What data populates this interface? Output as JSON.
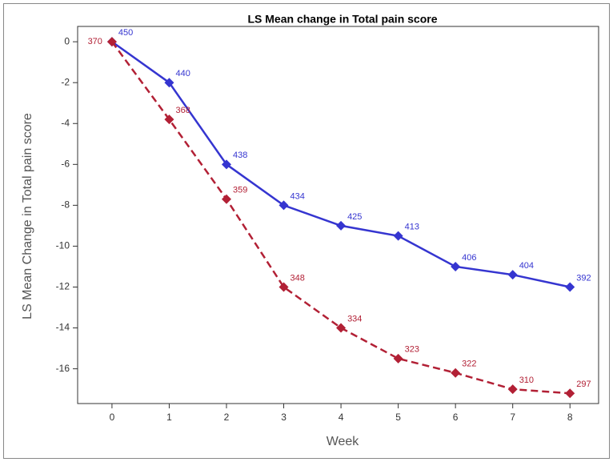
{
  "chart_data": {
    "type": "line",
    "title": "LS Mean change in Total pain score",
    "x_label": "Week",
    "y_label": "LS Mean Change in Total pain score",
    "x": [
      0,
      1,
      2,
      3,
      4,
      5,
      6,
      7,
      8
    ],
    "series": [
      {
        "color": "#3535d0",
        "dashed": false,
        "values": [
          0,
          -2,
          -6,
          -8,
          -9,
          -9.5,
          -11,
          -11.4,
          -12
        ],
        "point_labels": [
          450,
          440,
          438,
          434,
          425,
          413,
          406,
          404,
          392
        ]
      },
      {
        "color": "#b22035",
        "dashed": true,
        "values": [
          0,
          -3.8,
          -7.7,
          -12,
          -14,
          -15.5,
          -16.2,
          -17,
          -17.2
        ],
        "point_labels": [
          370,
          368,
          359,
          348,
          334,
          323,
          322,
          310,
          297
        ]
      }
    ],
    "xlim": [
      -0.6,
      8.5
    ],
    "xticks": [
      0,
      1,
      2,
      3,
      4,
      5,
      6,
      7,
      8
    ],
    "ylim": [
      -17.7,
      0.75
    ],
    "yticks": [
      0,
      -2,
      -4,
      -6,
      -8,
      -10,
      -12,
      -14,
      -16
    ],
    "grid": false
  }
}
